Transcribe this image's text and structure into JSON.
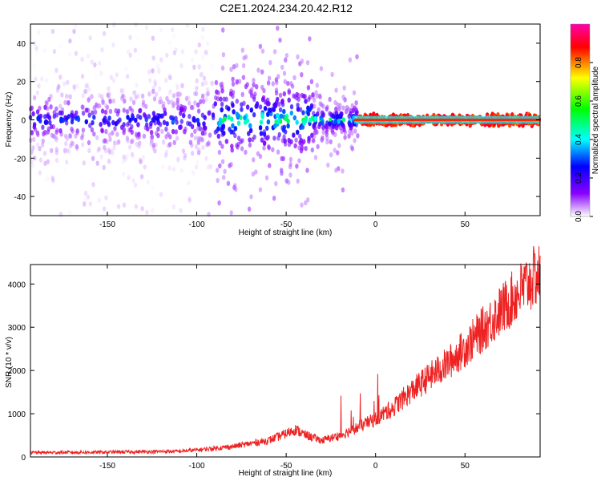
{
  "title": "C2E1.2024.234.20.42.R12",
  "chart_data": [
    {
      "type": "heatmap",
      "xlabel": "Height of straight line (km)",
      "ylabel": "Frequency (Hz)",
      "xlim": [
        -193,
        92
      ],
      "ylim": [
        -50,
        50
      ],
      "xticks": [
        -150,
        -100,
        -50,
        0,
        50
      ],
      "yticks": [
        -40,
        -20,
        0,
        20,
        40
      ],
      "colorbar": {
        "label": "Normalized spectral amplitude",
        "range": [
          0,
          1
        ],
        "ticks": [
          "0.0",
          "0.2",
          "0.4",
          "0.6",
          "0.8"
        ],
        "colors": [
          "#ffffff",
          "#8800ff",
          "#0000ff",
          "#00ffff",
          "#00ff00",
          "#ffff00",
          "#ff0000",
          "#ff00aa"
        ]
      },
      "grid": false
    },
    {
      "type": "line",
      "xlabel": "Height of straight line (km)",
      "ylabel": "SNR (10 * v/v)",
      "xlim": [
        -193,
        92
      ],
      "ylim": [
        0,
        4450
      ],
      "xticks": [
        -150,
        -100,
        -50,
        0,
        50
      ],
      "yticks": [
        0,
        1000,
        2000,
        3000,
        4000
      ],
      "line_color": "#ee2222",
      "series_trend": {
        "x": [
          -193,
          -150,
          -110,
          -100,
          -80,
          -60,
          -50,
          -45,
          -40,
          -30,
          -20,
          -10,
          0,
          10,
          20,
          30,
          40,
          50,
          60,
          70,
          80,
          90
        ],
        "y": [
          100,
          110,
          130,
          160,
          240,
          380,
          540,
          640,
          520,
          380,
          500,
          680,
          880,
          1150,
          1520,
          1850,
          2150,
          2520,
          2950,
          3380,
          3800,
          4200
        ]
      },
      "grid": false
    }
  ]
}
